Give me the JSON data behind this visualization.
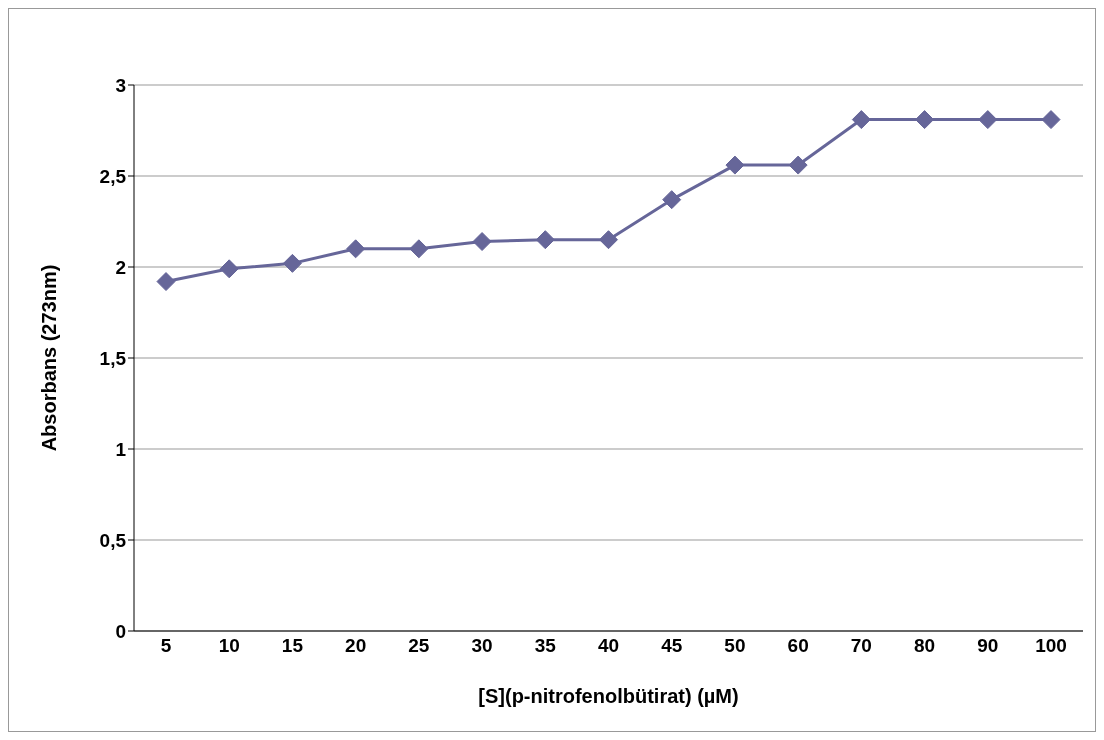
{
  "chart_data": {
    "type": "line",
    "xlabel": "[S](p-nitrofenolbütirat) (µM)",
    "ylabel": "Absorbans (273nm)",
    "categories": [
      "5",
      "10",
      "15",
      "20",
      "25",
      "30",
      "35",
      "40",
      "45",
      "50",
      "60",
      "70",
      "80",
      "90",
      "100"
    ],
    "series": [
      {
        "color": "#666699",
        "values": [
          1.92,
          1.99,
          2.02,
          2.1,
          2.1,
          2.14,
          2.15,
          2.15,
          2.37,
          2.56,
          2.56,
          2.81,
          2.81,
          2.81,
          2.81
        ]
      }
    ],
    "ylim": [
      0,
      3
    ],
    "yticks": [
      {
        "value": 0,
        "label": "0"
      },
      {
        "value": 0.5,
        "label": "0,5"
      },
      {
        "value": 1,
        "label": "1"
      },
      {
        "value": 1.5,
        "label": "1,5"
      },
      {
        "value": 2,
        "label": "2"
      },
      {
        "value": 2.5,
        "label": "2,5"
      },
      {
        "value": 3,
        "label": "3"
      }
    ],
    "grid": "y",
    "legend": false,
    "marker": "diamond",
    "line_style": "solid"
  }
}
